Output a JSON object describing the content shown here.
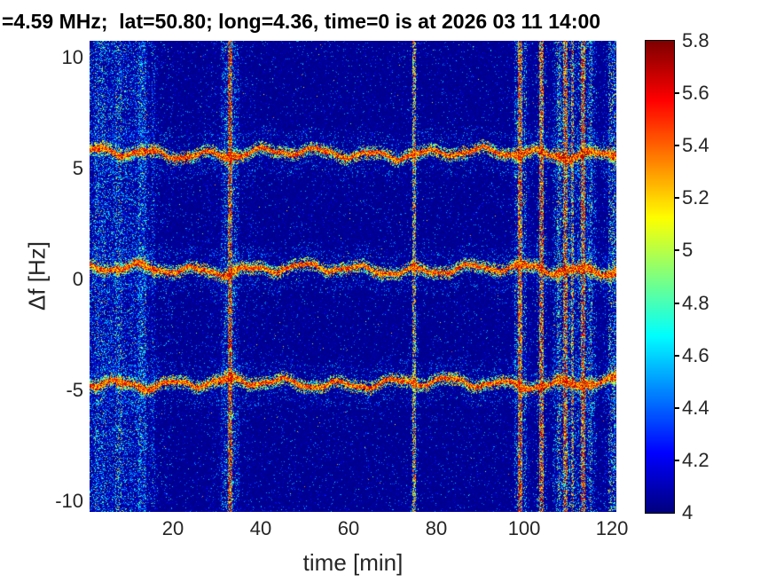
{
  "title": "=4.59 MHz;  lat=50.80; long=4.36, time=0 is at 2026 03 11 14:00",
  "axes": {
    "xlabel": "time [min]",
    "ylabel": "Δf [Hz]"
  },
  "chart_data": {
    "type": "heatmap",
    "title": "=4.59 MHz;  lat=50.80; long=4.36, time=0 is at 2026 03 11 14:00",
    "xlabel": "time [min]",
    "ylabel": "Δf [Hz]",
    "xlim": [
      1,
      121
    ],
    "ylim": [
      -10.48,
      10.76
    ],
    "xticks": [
      20,
      40,
      60,
      80,
      100,
      120
    ],
    "yticks": [
      10,
      5,
      0,
      -5,
      -10
    ],
    "grid": false,
    "colormap": "jet",
    "colorbar": {
      "min": 4,
      "max": 5.8,
      "ticks": [
        4,
        4.2,
        4.4,
        4.6,
        4.8,
        5,
        5.2,
        5.4,
        5.6,
        5.8
      ],
      "position": "right"
    },
    "background_value": 4.0,
    "doppler_traces": [
      {
        "name": "upper-sideband-trace",
        "center_hz": 5.68,
        "wobble_amp_hz": 0.25,
        "peak_value": 5.8
      },
      {
        "name": "carrier-trace",
        "center_hz": 0.45,
        "wobble_amp_hz": 0.25,
        "peak_value": 5.8
      },
      {
        "name": "lower-sideband-trace",
        "center_hz": -4.68,
        "wobble_amp_hz": 0.25,
        "peak_value": 5.8
      }
    ],
    "noise_band": {
      "t_start": 1,
      "t_end": 12,
      "fade_end": 16,
      "density": 0.42,
      "typical_value": 4.4,
      "max_value": 5.2,
      "description": "dense blue-cyan speckle noise at start of record"
    },
    "vertical_stripes": [
      {
        "t": 3.5,
        "halfwidth_min": 1.2,
        "density": 0.25,
        "peak_value": 4.9
      },
      {
        "t": 7.6,
        "halfwidth_min": 0.8,
        "density": 0.3,
        "peak_value": 5.0
      },
      {
        "t": 13.1,
        "halfwidth_min": 0.9,
        "density": 0.5,
        "peak_value": 4.8
      },
      {
        "t": 15.6,
        "halfwidth_min": 0.4,
        "density": 0.3,
        "peak_value": 4.6
      },
      {
        "t": 33.0,
        "halfwidth_min": 0.55,
        "density": 0.85,
        "peak_value": 5.8
      },
      {
        "t": 33.0,
        "halfwidth_min": 2.2,
        "density": 0.3,
        "peak_value": 4.75
      },
      {
        "t": 75.0,
        "halfwidth_min": 0.4,
        "density": 0.65,
        "peak_value": 5.55
      },
      {
        "t": 98.2,
        "halfwidth_min": 0.45,
        "density": 0.3,
        "peak_value": 4.8
      },
      {
        "t": 99.0,
        "halfwidth_min": 0.5,
        "density": 0.85,
        "peak_value": 5.8
      },
      {
        "t": 100.3,
        "halfwidth_min": 0.35,
        "density": 0.4,
        "peak_value": 5.0
      },
      {
        "t": 104.0,
        "halfwidth_min": 0.5,
        "density": 0.8,
        "peak_value": 5.8
      },
      {
        "t": 107.8,
        "halfwidth_min": 0.4,
        "density": 0.45,
        "peak_value": 5.3
      },
      {
        "t": 109.3,
        "halfwidth_min": 0.5,
        "density": 0.8,
        "peak_value": 5.8
      },
      {
        "t": 111.0,
        "halfwidth_min": 0.4,
        "density": 0.6,
        "peak_value": 5.6
      },
      {
        "t": 113.4,
        "halfwidth_min": 0.55,
        "density": 0.8,
        "peak_value": 5.8
      },
      {
        "t": 115.2,
        "halfwidth_min": 0.4,
        "density": 0.45,
        "peak_value": 5.1
      },
      {
        "t": 111.5,
        "halfwidth_min": 5.0,
        "density": 0.22,
        "peak_value": 4.8
      },
      {
        "t": 119.9,
        "halfwidth_min": 0.8,
        "density": 0.45,
        "peak_value": 5.2
      },
      {
        "t": 121.0,
        "halfwidth_min": 0.5,
        "density": 0.4,
        "peak_value": 4.7
      }
    ]
  },
  "colors": {
    "figure_background": "#ffffff",
    "tick_label": "#262626",
    "title_text": "#000000",
    "colorbar_border": "#000000",
    "colormap_min": "#000090",
    "colormap_max": "#800000"
  }
}
